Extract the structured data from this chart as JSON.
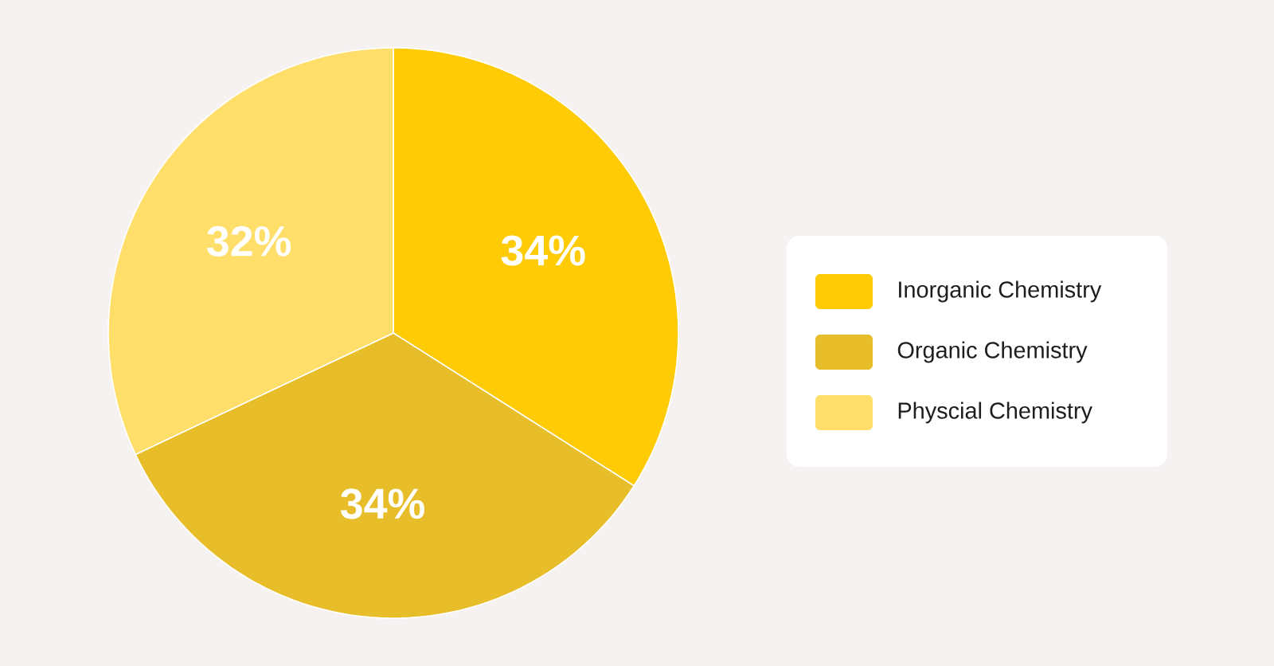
{
  "chart_data": {
    "type": "pie",
    "categories": [
      "Inorganic Chemistry",
      "Organic Chemistry",
      "Physcial Chemistry"
    ],
    "values": [
      34,
      34,
      32
    ],
    "colors": [
      "#ffcb05",
      "#e7be2a",
      "#ffde6a"
    ],
    "value_labels": [
      "34%",
      "34%",
      "32%"
    ],
    "legend": "right"
  }
}
